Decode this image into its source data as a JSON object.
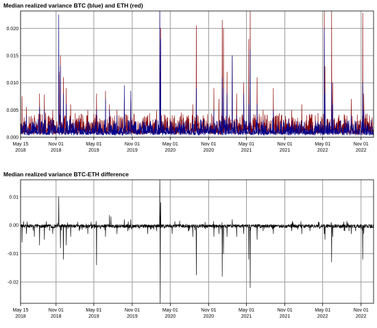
{
  "chart_data": [
    {
      "type": "line",
      "title": "Median realized variance BTC (blue) and ETH (red)",
      "xlim": [
        "2018-05-15",
        "2022-12-31"
      ],
      "ylim": [
        0,
        0.0232
      ],
      "x_ticks": [
        {
          "date": "2018-05-15",
          "month": "May 15",
          "year": "2018"
        },
        {
          "date": "2018-11-01",
          "month": "Nov 01",
          "year": "2018"
        },
        {
          "date": "2019-05-01",
          "month": "May 01",
          "year": "2019"
        },
        {
          "date": "2019-11-01",
          "month": "Nov 01",
          "year": "2019"
        },
        {
          "date": "2020-05-01",
          "month": "May 01",
          "year": "2020"
        },
        {
          "date": "2020-11-01",
          "month": "Nov 01",
          "year": "2020"
        },
        {
          "date": "2021-05-01",
          "month": "May 01",
          "year": "2021"
        },
        {
          "date": "2021-11-01",
          "month": "Nov 01",
          "year": "2021"
        },
        {
          "date": "2022-05-01",
          "month": "May 01",
          "year": "2022"
        },
        {
          "date": "2022-11-01",
          "month": "Nov 01",
          "year": "2022"
        }
      ],
      "y_ticks": [
        "0.000",
        "0.005",
        "0.010",
        "0.015",
        "0.020"
      ],
      "y_tick_values": [
        0,
        0.005,
        0.01,
        0.015,
        0.02
      ],
      "grid": true,
      "baseline": 0.0008,
      "series": [
        {
          "color": "#8b0000",
          "baseline": 0.0012,
          "peaks": [
            [
              "2018-05-22",
              0.0075
            ],
            [
              "2018-06-12",
              0.0055
            ],
            [
              "2018-07-20",
              0.004
            ],
            [
              "2018-08-14",
              0.008
            ],
            [
              "2018-09-06",
              0.0078
            ],
            [
              "2018-10-16",
              0.005
            ],
            [
              "2018-11-16",
              0.012
            ],
            [
              "2018-11-22",
              0.015
            ],
            [
              "2018-12-06",
              0.011
            ],
            [
              "2018-12-20",
              0.009
            ],
            [
              "2019-01-10",
              0.006
            ],
            [
              "2019-02-20",
              0.004
            ],
            [
              "2019-04-02",
              0.005
            ],
            [
              "2019-05-14",
              0.008
            ],
            [
              "2019-06-26",
              0.0085
            ],
            [
              "2019-07-15",
              0.006
            ],
            [
              "2019-08-20",
              0.005
            ],
            [
              "2019-09-24",
              0.007
            ],
            [
              "2019-10-25",
              0.007
            ],
            [
              "2019-12-18",
              0.003
            ],
            [
              "2020-01-14",
              0.004
            ],
            [
              "2020-02-26",
              0.005
            ],
            [
              "2020-03-12",
              0.0232
            ],
            [
              "2020-03-16",
              0.02
            ],
            [
              "2020-05-10",
              0.004
            ],
            [
              "2020-06-15",
              0.003
            ],
            [
              "2020-07-27",
              0.004
            ],
            [
              "2020-08-17",
              0.006
            ],
            [
              "2020-09-03",
              0.0205
            ],
            [
              "2020-10-20",
              0.003
            ],
            [
              "2020-11-26",
              0.009
            ],
            [
              "2020-12-20",
              0.007
            ],
            [
              "2021-01-05",
              0.0215
            ],
            [
              "2021-01-11",
              0.02
            ],
            [
              "2021-01-28",
              0.012
            ],
            [
              "2021-02-22",
              0.015
            ],
            [
              "2021-03-15",
              0.008
            ],
            [
              "2021-04-18",
              0.01
            ],
            [
              "2021-05-12",
              0.018
            ],
            [
              "2021-05-19",
              0.0232
            ],
            [
              "2021-06-21",
              0.011
            ],
            [
              "2021-07-20",
              0.005
            ],
            [
              "2021-09-07",
              0.009
            ],
            [
              "2021-10-15",
              0.004
            ],
            [
              "2021-12-04",
              0.005
            ],
            [
              "2022-01-21",
              0.006
            ],
            [
              "2022-03-01",
              0.004
            ],
            [
              "2022-05-09",
              0.0232
            ],
            [
              "2022-05-12",
              0.013
            ],
            [
              "2022-06-13",
              0.0232
            ],
            [
              "2022-06-18",
              0.01
            ],
            [
              "2022-08-15",
              0.004
            ],
            [
              "2022-09-15",
              0.007
            ],
            [
              "2022-11-09",
              0.0228
            ],
            [
              "2022-11-14",
              0.008
            ],
            [
              "2022-12-15",
              0.002
            ]
          ]
        },
        {
          "color": "#00008b",
          "baseline": 0.0009,
          "peaks": [
            [
              "2018-06-12",
              0.004
            ],
            [
              "2018-08-14",
              0.0055
            ],
            [
              "2018-09-06",
              0.005
            ],
            [
              "2018-11-14",
              0.0225
            ],
            [
              "2018-11-22",
              0.013
            ],
            [
              "2018-12-06",
              0.008
            ],
            [
              "2018-12-20",
              0.006
            ],
            [
              "2019-01-10",
              0.0035
            ],
            [
              "2019-05-14",
              0.005
            ],
            [
              "2019-06-26",
              0.007
            ],
            [
              "2019-07-15",
              0.005
            ],
            [
              "2019-08-20",
              0.004
            ],
            [
              "2019-09-24",
              0.0095
            ],
            [
              "2019-10-25",
              0.0085
            ],
            [
              "2020-03-12",
              0.0232
            ],
            [
              "2020-03-16",
              0.018
            ],
            [
              "2020-06-15",
              0.002
            ],
            [
              "2020-09-03",
              0.009
            ],
            [
              "2020-11-26",
              0.005
            ],
            [
              "2021-01-05",
              0.011
            ],
            [
              "2021-01-11",
              0.009
            ],
            [
              "2021-01-28",
              0.008
            ],
            [
              "2021-02-22",
              0.015
            ],
            [
              "2021-03-15",
              0.004
            ],
            [
              "2021-04-18",
              0.008
            ],
            [
              "2021-05-12",
              0.006
            ],
            [
              "2021-05-19",
              0.016
            ],
            [
              "2021-06-21",
              0.006
            ],
            [
              "2021-09-07",
              0.005
            ],
            [
              "2022-05-09",
              0.02
            ],
            [
              "2022-05-12",
              0.008
            ],
            [
              "2022-06-13",
              0.01
            ],
            [
              "2022-06-18",
              0.006
            ],
            [
              "2022-09-15",
              0.004
            ],
            [
              "2022-11-09",
              0.01
            ],
            [
              "2022-11-14",
              0.005
            ]
          ]
        }
      ]
    },
    {
      "type": "line",
      "title": "Median realized variance BTC-ETH difference",
      "xlim": [
        "2018-05-15",
        "2022-12-31"
      ],
      "ylim": [
        -0.0275,
        0.016
      ],
      "x_ticks": [
        {
          "date": "2018-05-15",
          "month": "May 15",
          "year": "2018"
        },
        {
          "date": "2018-11-01",
          "month": "Nov 01",
          "year": "2018"
        },
        {
          "date": "2019-05-01",
          "month": "May 01",
          "year": "2019"
        },
        {
          "date": "2019-11-01",
          "month": "Nov 01",
          "year": "2019"
        },
        {
          "date": "2020-05-01",
          "month": "May 01",
          "year": "2020"
        },
        {
          "date": "2020-11-01",
          "month": "Nov 01",
          "year": "2020"
        },
        {
          "date": "2021-05-01",
          "month": "May 01",
          "year": "2021"
        },
        {
          "date": "2021-11-01",
          "month": "Nov 01",
          "year": "2021"
        },
        {
          "date": "2022-05-01",
          "month": "May 01",
          "year": "2022"
        },
        {
          "date": "2022-11-01",
          "month": "Nov 01",
          "year": "2022"
        }
      ],
      "y_ticks": [
        "0.01",
        "0.00",
        "-0.01",
        "-0.02"
      ],
      "y_tick_values": [
        0.01,
        0,
        -0.01,
        -0.02
      ],
      "grid": true,
      "series": [
        {
          "color": "#000000",
          "baseline": -0.0003,
          "peaks": [
            [
              "2018-05-22",
              -0.006
            ],
            [
              "2018-06-12",
              -0.003
            ],
            [
              "2018-07-20",
              -0.004
            ],
            [
              "2018-08-14",
              -0.007
            ],
            [
              "2018-09-06",
              -0.005
            ],
            [
              "2018-10-16",
              -0.003
            ],
            [
              "2018-11-14",
              0.01
            ],
            [
              "2018-11-22",
              -0.008
            ],
            [
              "2018-12-06",
              -0.012
            ],
            [
              "2018-12-20",
              -0.007
            ],
            [
              "2019-01-10",
              -0.004
            ],
            [
              "2019-04-02",
              -0.003
            ],
            [
              "2019-05-14",
              -0.014
            ],
            [
              "2019-06-26",
              -0.004
            ],
            [
              "2019-07-15",
              0.0035
            ],
            [
              "2019-07-22",
              0.003
            ],
            [
              "2019-08-20",
              -0.003
            ],
            [
              "2019-09-24",
              0.002
            ],
            [
              "2019-10-25",
              0.002
            ],
            [
              "2020-01-14",
              -0.003
            ],
            [
              "2020-02-26",
              -0.002
            ],
            [
              "2020-03-12",
              0.016
            ],
            [
              "2020-03-14",
              -0.0275
            ],
            [
              "2020-03-16",
              0.008
            ],
            [
              "2020-05-10",
              -0.003
            ],
            [
              "2020-06-15",
              0.0015
            ],
            [
              "2020-07-27",
              -0.002
            ],
            [
              "2020-08-17",
              -0.004
            ],
            [
              "2020-09-03",
              -0.0175
            ],
            [
              "2020-11-26",
              -0.004
            ],
            [
              "2020-12-20",
              -0.003
            ],
            [
              "2021-01-05",
              -0.018
            ],
            [
              "2021-01-11",
              -0.01
            ],
            [
              "2021-01-28",
              -0.004
            ],
            [
              "2021-02-22",
              0.002
            ],
            [
              "2021-03-15",
              -0.004
            ],
            [
              "2021-04-18",
              -0.003
            ],
            [
              "2021-05-12",
              -0.012
            ],
            [
              "2021-05-19",
              -0.022
            ],
            [
              "2021-06-21",
              -0.005
            ],
            [
              "2021-07-20",
              -0.002
            ],
            [
              "2021-09-07",
              -0.003
            ],
            [
              "2021-12-04",
              -0.002
            ],
            [
              "2022-01-21",
              -0.003
            ],
            [
              "2022-03-01",
              -0.002
            ],
            [
              "2022-05-09",
              -0.003
            ],
            [
              "2022-05-12",
              -0.005
            ],
            [
              "2022-06-13",
              -0.013
            ],
            [
              "2022-06-18",
              -0.004
            ],
            [
              "2022-08-15",
              -0.002
            ],
            [
              "2022-09-15",
              -0.003
            ],
            [
              "2022-11-09",
              -0.012
            ],
            [
              "2022-11-14",
              -0.003
            ],
            [
              "2022-12-15",
              -0.001
            ]
          ]
        }
      ]
    }
  ]
}
